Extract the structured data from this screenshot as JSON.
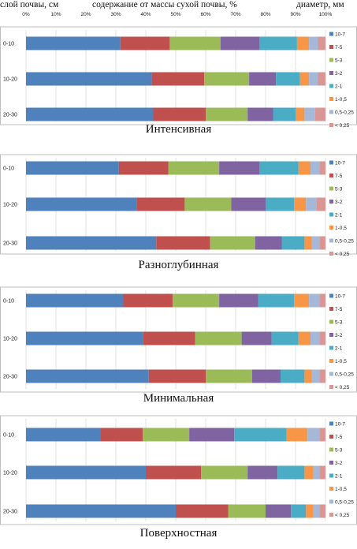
{
  "header": {
    "layer_label": "слой почвы, см",
    "content_label": "содержание от массы сухой почвы, %",
    "diameter_label": "диаметр, мм"
  },
  "x_ticks": [
    "0%",
    "10%",
    "20%",
    "30%",
    "40%",
    "50%",
    "60%",
    "70%",
    "80%",
    "90%",
    "100%"
  ],
  "legend": [
    "10-7",
    "7-5",
    "5-3",
    "3-2",
    "2-1",
    "1-0,5",
    "0,5-0,25",
    "< 0,25"
  ],
  "colors": {
    "10-7": "#4f81bd",
    "7-5": "#c0504d",
    "5-3": "#9bbb59",
    "3-2": "#8064a2",
    "2-1": "#4bacc6",
    "1-0,5": "#f79646",
    "0,5-0,25": "#a5b8d8",
    "< 0,25": "#d99694"
  },
  "chart_data": [
    {
      "type": "bar",
      "orientation": "horizontal",
      "stacked": "percent",
      "title": "Интенсивная",
      "categories": [
        "0-10",
        "10-20",
        "20-30"
      ],
      "xlim": [
        0,
        100
      ],
      "series": [
        {
          "name": "10-7",
          "values": [
            31.5,
            42,
            42.5
          ]
        },
        {
          "name": "7-5",
          "values": [
            16.5,
            17.5,
            17.5
          ]
        },
        {
          "name": "5-3",
          "values": [
            17,
            15,
            14
          ]
        },
        {
          "name": "3-2",
          "values": [
            13,
            9,
            8.5
          ]
        },
        {
          "name": "2-1",
          "values": [
            12.5,
            8,
            7.5
          ]
        },
        {
          "name": "1-0,5",
          "values": [
            4,
            3,
            3
          ]
        },
        {
          "name": "0,5-0,25",
          "values": [
            3,
            3,
            3.5
          ]
        },
        {
          "name": "< 0,25",
          "values": [
            2.5,
            2.5,
            3.5
          ]
        }
      ]
    },
    {
      "type": "bar",
      "orientation": "horizontal",
      "stacked": "percent",
      "title": "Разноглубинная",
      "categories": [
        "0-10",
        "10-20",
        "20-30"
      ],
      "xlim": [
        0,
        100
      ],
      "series": [
        {
          "name": "10-7",
          "values": [
            31,
            37,
            43.5
          ]
        },
        {
          "name": "7-5",
          "values": [
            16.5,
            16,
            18
          ]
        },
        {
          "name": "5-3",
          "values": [
            17,
            15.5,
            15
          ]
        },
        {
          "name": "3-2",
          "values": [
            13.5,
            11.5,
            9
          ]
        },
        {
          "name": "2-1",
          "values": [
            13,
            9.5,
            7.5
          ]
        },
        {
          "name": "1-0,5",
          "values": [
            4,
            4,
            2.5
          ]
        },
        {
          "name": "0,5-0,25",
          "values": [
            3,
            3.5,
            2.5
          ]
        },
        {
          "name": "< 0,25",
          "values": [
            2,
            3,
            2
          ]
        }
      ]
    },
    {
      "type": "bar",
      "orientation": "horizontal",
      "stacked": "percent",
      "title": "Минимальная",
      "categories": [
        "0-10",
        "10-20",
        "20-30"
      ],
      "xlim": [
        0,
        100
      ],
      "series": [
        {
          "name": "10-7",
          "values": [
            32.5,
            39,
            41
          ]
        },
        {
          "name": "7-5",
          "values": [
            16.5,
            17.5,
            19
          ]
        },
        {
          "name": "5-3",
          "values": [
            15.5,
            15.5,
            15.5
          ]
        },
        {
          "name": "3-2",
          "values": [
            13,
            10,
            9.5
          ]
        },
        {
          "name": "2-1",
          "values": [
            12,
            9,
            8
          ]
        },
        {
          "name": "1-0,5",
          "values": [
            5,
            4,
            2.5
          ]
        },
        {
          "name": "0,5-0,25",
          "values": [
            3.5,
            3,
            2.5
          ]
        },
        {
          "name": "< 0,25",
          "values": [
            2,
            2,
            2
          ]
        }
      ]
    },
    {
      "type": "bar",
      "orientation": "horizontal",
      "stacked": "percent",
      "title": "Поверхностная",
      "categories": [
        "0-10",
        "10-20",
        "20-30"
      ],
      "xlim": [
        0,
        100
      ],
      "series": [
        {
          "name": "10-7",
          "values": [
            25,
            40,
            50
          ]
        },
        {
          "name": "7-5",
          "values": [
            14,
            18.5,
            17.5
          ]
        },
        {
          "name": "5-3",
          "values": [
            15.5,
            15.5,
            12.5
          ]
        },
        {
          "name": "3-2",
          "values": [
            15,
            10,
            8.5
          ]
        },
        {
          "name": "2-1",
          "values": [
            17.5,
            9,
            5
          ]
        },
        {
          "name": "1-0,5",
          "values": [
            7,
            3,
            2.5
          ]
        },
        {
          "name": "0,5-0,25",
          "values": [
            4,
            2,
            2
          ]
        },
        {
          "name": "< 0,25",
          "values": [
            2,
            2,
            2
          ]
        }
      ]
    }
  ]
}
